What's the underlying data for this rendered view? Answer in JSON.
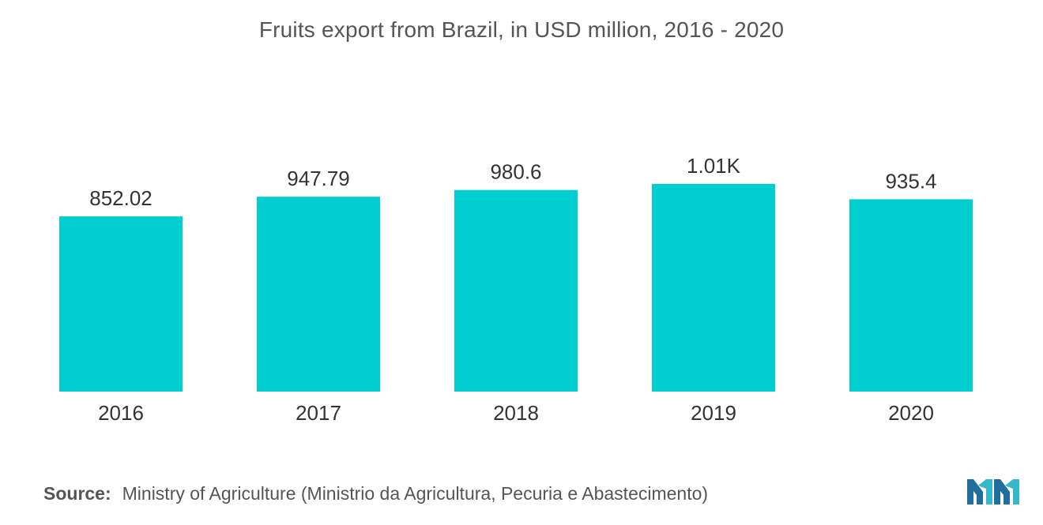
{
  "chart_data": {
    "type": "bar",
    "title": "Fruits export from Brazil, in USD million, 2016 - 2020",
    "categories": [
      "2016",
      "2017",
      "2018",
      "2019",
      "2020"
    ],
    "values": [
      852.02,
      947.79,
      980.6,
      1010,
      935.4
    ],
    "value_labels": [
      "852.02",
      "947.79",
      "980.6",
      "1.01K",
      "935.4"
    ],
    "xlabel": "",
    "ylabel": "",
    "ylim": [
      0,
      1010
    ],
    "grid": false,
    "legend": "none",
    "bar_color": "#00ced1"
  },
  "source": {
    "label": "Source:",
    "text": "Ministry of Agriculture (Ministrio da Agricultura, Pecuria e Abastecimento)"
  },
  "logo": {
    "icon": "mordor-intelligence-logo",
    "colors": [
      "#1f6e9e",
      "#35b8c9"
    ]
  }
}
